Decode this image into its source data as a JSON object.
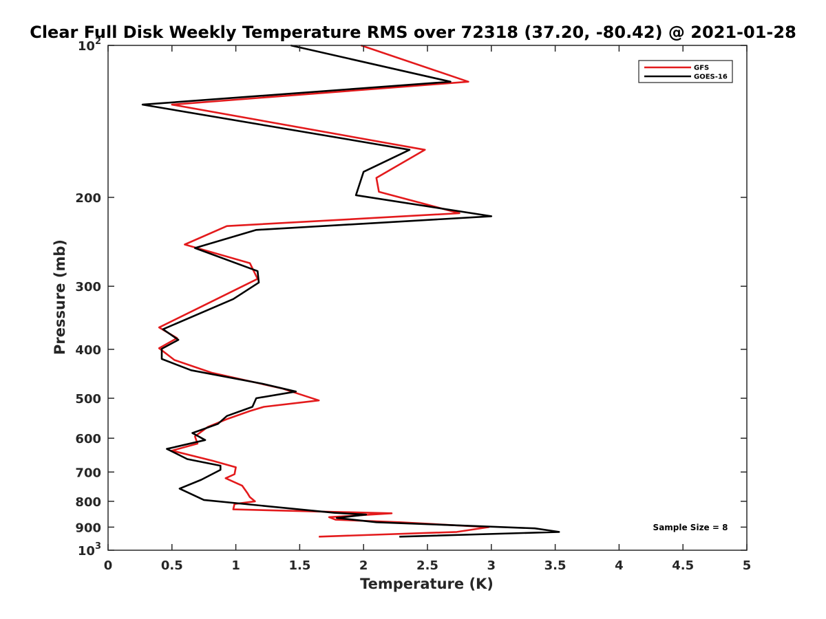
{
  "chart_data": {
    "type": "line",
    "title": "Clear Full Disk Weekly Temperature RMS over 72318 (37.20, -80.42) @ 2021-01-28",
    "xlabel": "Temperature (K)",
    "ylabel": "Pressure (mb)",
    "xlim": [
      0,
      5
    ],
    "ylim": [
      100,
      1000
    ],
    "yscale": "log",
    "y_reversed": true,
    "grid": false,
    "legend_position": "top-right",
    "x_ticks": [
      0,
      0.5,
      1,
      1.5,
      2,
      2.5,
      3,
      3.5,
      4,
      4.5,
      5
    ],
    "x_tick_labels": [
      "0",
      "0.5",
      "1",
      "1.5",
      "2",
      "2.5",
      "3",
      "3.5",
      "4",
      "4.5",
      "5"
    ],
    "y_ticks": [
      100,
      200,
      300,
      400,
      500,
      600,
      700,
      800,
      900,
      1000
    ],
    "y_tick_labels": [
      {
        "base": "10",
        "exp": "2"
      },
      {
        "base": "200",
        "exp": ""
      },
      {
        "base": "300",
        "exp": ""
      },
      {
        "base": "400",
        "exp": ""
      },
      {
        "base": "500",
        "exp": ""
      },
      {
        "base": "600",
        "exp": ""
      },
      {
        "base": "700",
        "exp": ""
      },
      {
        "base": "800",
        "exp": ""
      },
      {
        "base": "900",
        "exp": ""
      },
      {
        "base": "10",
        "exp": "3"
      }
    ],
    "annotation": "Sample Size = 8",
    "series": [
      {
        "name": "GFS",
        "color": "#e31a1c",
        "points": [
          [
            1.98,
            100
          ],
          [
            2.82,
            118
          ],
          [
            0.5,
            131
          ],
          [
            2.48,
            161
          ],
          [
            2.1,
            183
          ],
          [
            2.12,
            195
          ],
          [
            2.75,
            215
          ],
          [
            0.93,
            228
          ],
          [
            0.6,
            248
          ],
          [
            1.11,
            270
          ],
          [
            1.17,
            290
          ],
          [
            0.68,
            334
          ],
          [
            0.4,
            362
          ],
          [
            0.54,
            380
          ],
          [
            0.4,
            398
          ],
          [
            0.52,
            420
          ],
          [
            0.81,
            445
          ],
          [
            1.36,
            478
          ],
          [
            1.65,
            505
          ],
          [
            1.22,
            520
          ],
          [
            1.11,
            530
          ],
          [
            0.93,
            550
          ],
          [
            0.78,
            570
          ],
          [
            0.68,
            595
          ],
          [
            0.7,
            615
          ],
          [
            0.5,
            635
          ],
          [
            0.82,
            665
          ],
          [
            1.0,
            685
          ],
          [
            0.99,
            707
          ],
          [
            0.92,
            720
          ],
          [
            1.05,
            745
          ],
          [
            1.09,
            770
          ],
          [
            1.11,
            785
          ],
          [
            1.15,
            800
          ],
          [
            0.99,
            810
          ],
          [
            0.98,
            830
          ],
          [
            1.8,
            840
          ],
          [
            2.22,
            845
          ],
          [
            1.73,
            860
          ],
          [
            1.78,
            870
          ],
          [
            2.28,
            880
          ],
          [
            2.98,
            900
          ],
          [
            2.73,
            920
          ],
          [
            1.65,
            940
          ]
        ]
      },
      {
        "name": "GOES-16",
        "color": "#000000",
        "points": [
          [
            1.43,
            100
          ],
          [
            2.68,
            118
          ],
          [
            0.27,
            131
          ],
          [
            2.36,
            161
          ],
          [
            2.0,
            178
          ],
          [
            1.94,
            198
          ],
          [
            3.0,
            218
          ],
          [
            1.16,
            232
          ],
          [
            0.68,
            252
          ],
          [
            1.17,
            280
          ],
          [
            1.18,
            295
          ],
          [
            0.98,
            318
          ],
          [
            0.43,
            365
          ],
          [
            0.55,
            383
          ],
          [
            0.42,
            399
          ],
          [
            0.42,
            418
          ],
          [
            0.65,
            440
          ],
          [
            1.21,
            468
          ],
          [
            1.47,
            485
          ],
          [
            1.16,
            500
          ],
          [
            1.13,
            520
          ],
          [
            0.93,
            542
          ],
          [
            0.86,
            562
          ],
          [
            0.66,
            586
          ],
          [
            0.76,
            605
          ],
          [
            0.46,
            630
          ],
          [
            0.62,
            660
          ],
          [
            0.88,
            680
          ],
          [
            0.88,
            693
          ],
          [
            0.73,
            725
          ],
          [
            0.56,
            755
          ],
          [
            0.75,
            795
          ],
          [
            1.77,
            843
          ],
          [
            2.02,
            850
          ],
          [
            1.79,
            863
          ],
          [
            2.1,
            880
          ],
          [
            3.34,
            905
          ],
          [
            3.53,
            920
          ],
          [
            2.28,
            940
          ]
        ]
      }
    ]
  }
}
